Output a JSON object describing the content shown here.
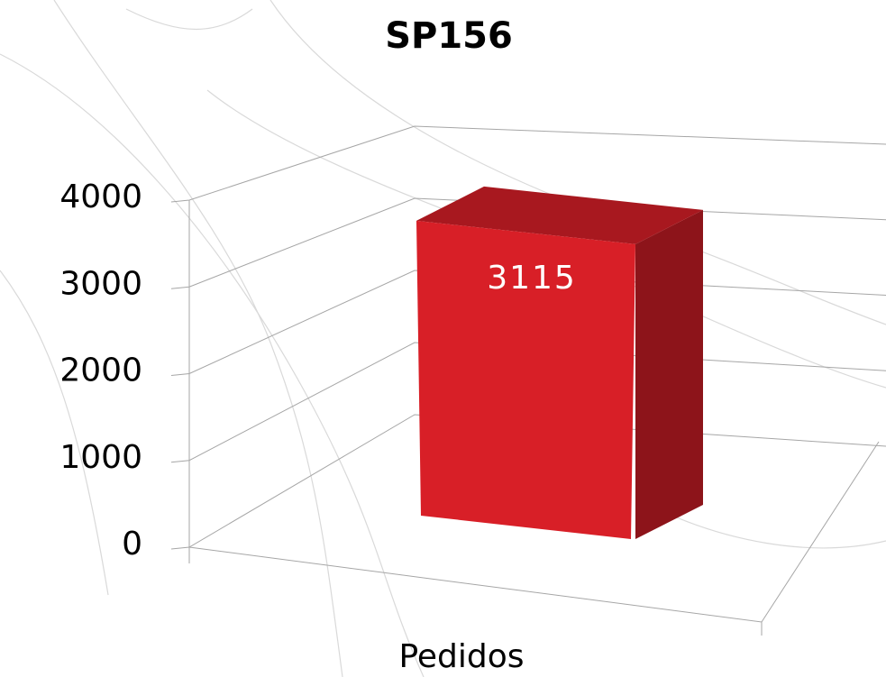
{
  "chart_data": {
    "type": "bar3d",
    "title": "SP156",
    "x_label": "Pedidos",
    "categories": [
      "Pedidos"
    ],
    "values": [
      3115
    ],
    "color": "#d81f27",
    "ylim": [
      0,
      4000
    ],
    "yticks": [
      0,
      1000,
      2000,
      3000,
      4000
    ],
    "grid": true
  }
}
